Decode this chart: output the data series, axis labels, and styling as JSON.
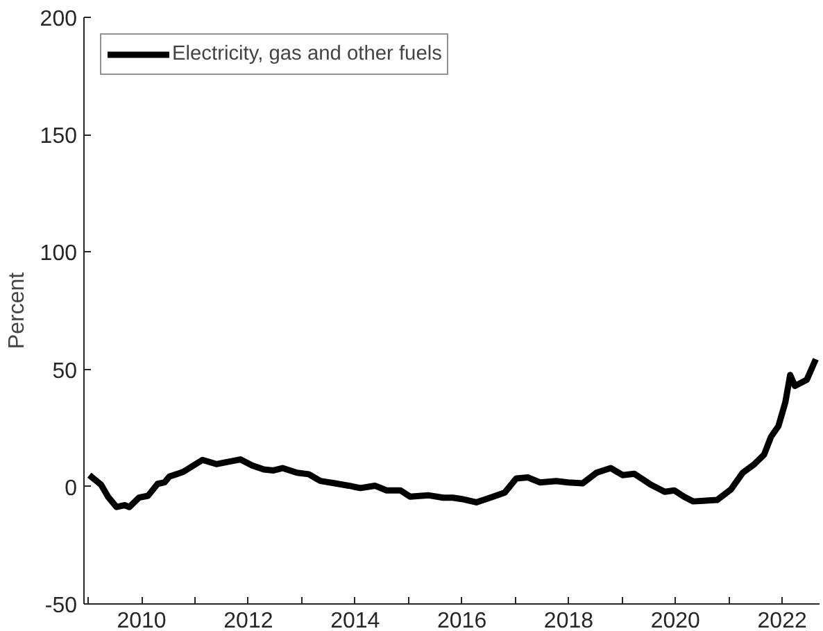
{
  "chart_data": {
    "type": "line",
    "ylabel": "Percent",
    "xlim": [
      2008.92,
      2022.7
    ],
    "ylim": [
      -50,
      200
    ],
    "xticks": [
      {
        "value": 2009,
        "label": null
      },
      2010,
      {
        "value": 2011,
        "label": null
      },
      2012,
      {
        "value": 2013,
        "label": null
      },
      2014,
      {
        "value": 2015,
        "label": null
      },
      2016,
      {
        "value": 2017,
        "label": null
      },
      2018,
      {
        "value": 2019,
        "label": null
      },
      2020,
      {
        "value": 2021,
        "label": null
      },
      2022
    ],
    "yticks": [
      -50,
      0,
      50,
      100,
      150,
      200
    ],
    "grid": false,
    "legend": "top left",
    "marker": "none",
    "line_style": "solid",
    "series": [
      {
        "name": "Electricity, gas and other fuels",
        "color": "#000000",
        "x": [
          2009.02,
          2009.24,
          2009.37,
          2009.53,
          2009.68,
          2009.77,
          2009.95,
          2010.12,
          2010.3,
          2010.43,
          2010.52,
          2010.78,
          2010.92,
          2011.14,
          2011.4,
          2011.63,
          2011.85,
          2012.07,
          2012.29,
          2012.47,
          2012.64,
          2012.91,
          2013.13,
          2013.35,
          2013.62,
          2013.88,
          2014.1,
          2014.37,
          2014.59,
          2014.85,
          2015.03,
          2015.38,
          2015.65,
          2015.83,
          2016.0,
          2016.27,
          2016.53,
          2016.8,
          2017.02,
          2017.24,
          2017.46,
          2017.77,
          2017.99,
          2018.26,
          2018.52,
          2018.79,
          2019.01,
          2019.23,
          2019.54,
          2019.8,
          2019.98,
          2020.16,
          2020.33,
          2020.78,
          2021.04,
          2021.26,
          2021.48,
          2021.66,
          2021.79,
          2021.93,
          2022.06,
          2022.15,
          2022.24,
          2022.46,
          2022.63
        ],
        "values": [
          4.9,
          0.8,
          -4.3,
          -8.7,
          -7.9,
          -8.7,
          -4.7,
          -3.9,
          1.2,
          1.8,
          4.3,
          6.3,
          8.3,
          11.4,
          9.6,
          10.6,
          11.6,
          9.0,
          7.3,
          6.9,
          7.9,
          5.9,
          5.3,
          2.4,
          1.4,
          0.4,
          -0.6,
          0.4,
          -1.6,
          -1.6,
          -4.3,
          -3.7,
          -4.7,
          -4.7,
          -5.3,
          -6.7,
          -4.7,
          -2.6,
          3.5,
          3.9,
          1.8,
          2.4,
          1.8,
          1.4,
          5.9,
          7.9,
          4.9,
          5.5,
          0.8,
          -2.2,
          -1.6,
          -4.3,
          -6.3,
          -5.7,
          -1.2,
          5.9,
          9.6,
          13.6,
          21.2,
          25.8,
          36.0,
          47.6,
          42.9,
          45.5,
          54.3
        ]
      }
    ]
  }
}
